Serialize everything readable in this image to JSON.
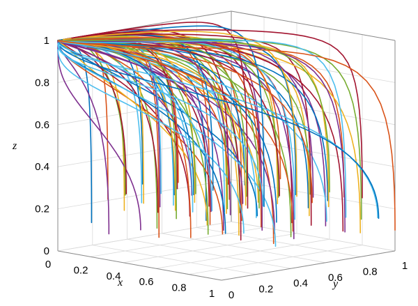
{
  "chart_data": {
    "type": "line",
    "subtype": "3d-trajectories",
    "title": "",
    "xlabel": "x",
    "ylabel": "y",
    "zlabel": "z",
    "xlim": [
      0,
      1
    ],
    "ylim": [
      0,
      1
    ],
    "zlim": [
      0,
      1
    ],
    "x_ticks": [
      "0",
      "0.2",
      "0.4",
      "0.6",
      "0.8",
      "1"
    ],
    "y_ticks": [
      "0",
      "0.2",
      "0.4",
      "0.6",
      "0.8",
      "1"
    ],
    "z_ticks": [
      "0",
      "0.2",
      "0.4",
      "0.6",
      "0.8",
      "1"
    ],
    "grid": true,
    "convergence_point": {
      "x": 0,
      "y": 0,
      "z": 1
    },
    "series_colors": [
      "#0072BD",
      "#D95319",
      "#EDB120",
      "#7E2F8E",
      "#77AC30",
      "#4DBEEE",
      "#A2142F"
    ],
    "trajectory_starts": {
      "x": [
        0.1,
        0.2,
        0.3,
        0.4,
        0.5,
        0.6,
        0.7,
        0.8,
        0.9,
        1
      ],
      "y": [
        0.1,
        0.2,
        0.3,
        0.4,
        0.5,
        0.6,
        0.7,
        0.8,
        0.9,
        1
      ]
    }
  }
}
